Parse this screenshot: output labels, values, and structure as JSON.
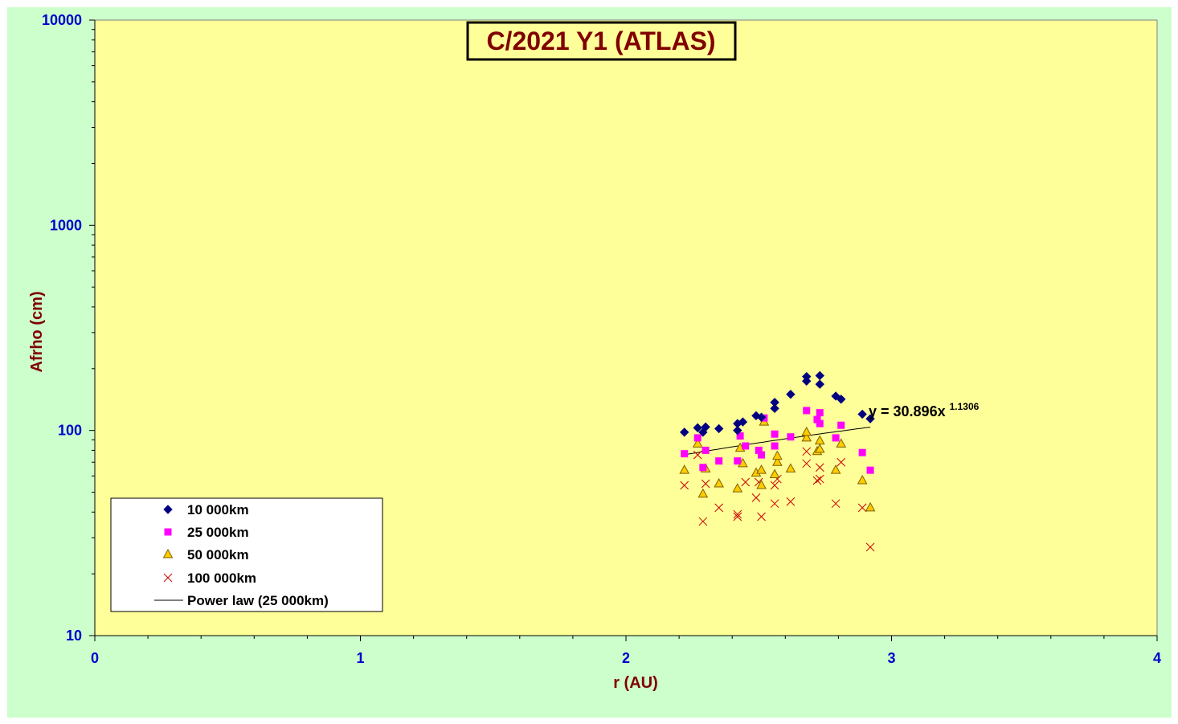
{
  "chart_data": {
    "type": "scatter",
    "title": "C/2021 Y1 (ATLAS)",
    "xlabel": "r (AU)",
    "ylabel": "Afrho (cm)",
    "xlim": [
      0,
      4
    ],
    "ylim": [
      10,
      10000
    ],
    "yscale": "log",
    "x_ticks": [
      "0",
      "1",
      "2",
      "3",
      "4"
    ],
    "y_ticks": [
      "10",
      "100",
      "1000",
      "10000"
    ],
    "grid": false,
    "legend_position": "bottom-left",
    "colors": {
      "plot_background": "#ffff99",
      "chart_background": "#ccffcc",
      "tick_labels": "#0000cc",
      "axis_titles": "#800000"
    },
    "series": [
      {
        "name": "10 000km",
        "marker": "diamond",
        "color": "#000080",
        "points": [
          [
            2.22,
            98
          ],
          [
            2.27,
            103
          ],
          [
            2.29,
            98
          ],
          [
            2.3,
            104
          ],
          [
            2.35,
            102
          ],
          [
            2.42,
            100
          ],
          [
            2.42,
            108
          ],
          [
            2.44,
            110
          ],
          [
            2.49,
            118
          ],
          [
            2.51,
            116
          ],
          [
            2.56,
            128
          ],
          [
            2.56,
            137
          ],
          [
            2.62,
            150
          ],
          [
            2.68,
            183
          ],
          [
            2.68,
            174
          ],
          [
            2.73,
            185
          ],
          [
            2.73,
            168
          ],
          [
            2.79,
            147
          ],
          [
            2.81,
            142
          ],
          [
            2.89,
            120
          ],
          [
            2.92,
            114
          ]
        ]
      },
      {
        "name": "25 000km",
        "marker": "square",
        "color": "#ff00ff",
        "points": [
          [
            2.22,
            77
          ],
          [
            2.27,
            92
          ],
          [
            2.29,
            66
          ],
          [
            2.3,
            80
          ],
          [
            2.35,
            71
          ],
          [
            2.42,
            71
          ],
          [
            2.43,
            94
          ],
          [
            2.45,
            84
          ],
          [
            2.5,
            80
          ],
          [
            2.51,
            76
          ],
          [
            2.52,
            115
          ],
          [
            2.56,
            84
          ],
          [
            2.56,
            96
          ],
          [
            2.62,
            93
          ],
          [
            2.68,
            125
          ],
          [
            2.72,
            113
          ],
          [
            2.73,
            122
          ],
          [
            2.73,
            108
          ],
          [
            2.79,
            92
          ],
          [
            2.81,
            106
          ],
          [
            2.89,
            78
          ],
          [
            2.92,
            64
          ]
        ]
      },
      {
        "name": "50 000km",
        "marker": "triangle",
        "color": "#ffcc00",
        "points": [
          [
            2.22,
            64
          ],
          [
            2.27,
            86
          ],
          [
            2.29,
            49
          ],
          [
            2.3,
            65
          ],
          [
            2.35,
            55
          ],
          [
            2.42,
            52
          ],
          [
            2.43,
            82
          ],
          [
            2.44,
            69
          ],
          [
            2.49,
            62
          ],
          [
            2.51,
            54
          ],
          [
            2.51,
            64
          ],
          [
            2.52,
            110
          ],
          [
            2.56,
            61
          ],
          [
            2.57,
            70
          ],
          [
            2.57,
            75
          ],
          [
            2.62,
            65
          ],
          [
            2.68,
            92
          ],
          [
            2.68,
            98
          ],
          [
            2.72,
            79
          ],
          [
            2.73,
            89
          ],
          [
            2.73,
            81
          ],
          [
            2.79,
            64
          ],
          [
            2.81,
            86
          ],
          [
            2.89,
            57
          ],
          [
            2.92,
            42
          ]
        ]
      },
      {
        "name": "100 000km",
        "marker": "x",
        "color": "#cc0000",
        "points": [
          [
            2.22,
            54
          ],
          [
            2.27,
            76
          ],
          [
            2.29,
            36
          ],
          [
            2.3,
            55
          ],
          [
            2.35,
            42
          ],
          [
            2.42,
            39
          ],
          [
            2.42,
            38
          ],
          [
            2.45,
            56
          ],
          [
            2.49,
            47
          ],
          [
            2.5,
            56
          ],
          [
            2.51,
            38
          ],
          [
            2.56,
            44
          ],
          [
            2.56,
            54
          ],
          [
            2.57,
            58
          ],
          [
            2.62,
            45
          ],
          [
            2.68,
            69
          ],
          [
            2.68,
            79
          ],
          [
            2.72,
            57
          ],
          [
            2.73,
            58
          ],
          [
            2.73,
            66
          ],
          [
            2.79,
            44
          ],
          [
            2.81,
            70
          ],
          [
            2.89,
            42
          ],
          [
            2.92,
            27
          ]
        ]
      }
    ],
    "trendline": {
      "name": "Power law (25 000km)",
      "color": "#000000",
      "x_range": [
        2.22,
        2.92
      ],
      "coefficient": 30.896,
      "exponent": 1.1306,
      "equation_main": "y = 30.896x",
      "equation_exponent": "1.1306"
    }
  }
}
